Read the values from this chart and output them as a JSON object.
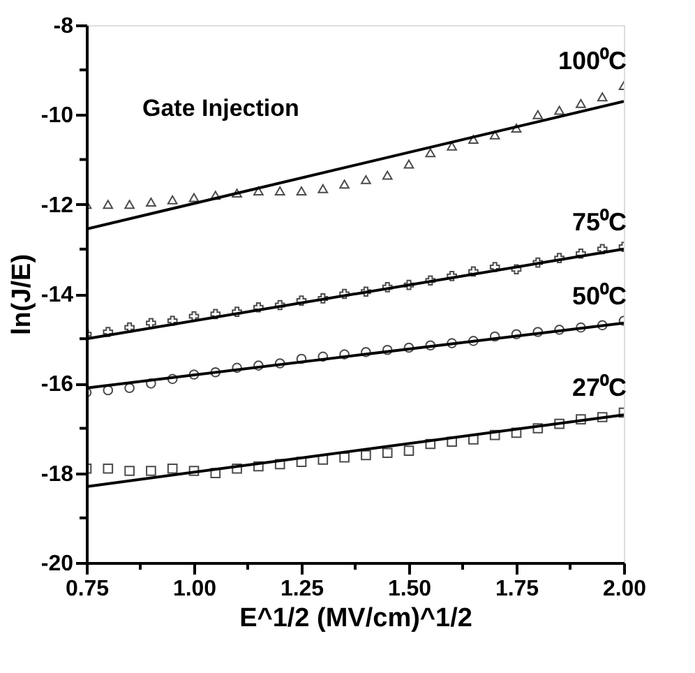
{
  "chart_data": {
    "type": "scatter",
    "xlabel": "E^1/2 (MV/cm)^1/2",
    "ylabel": "ln(J/E)",
    "annotations": [
      "Gate Injection"
    ],
    "xlim": [
      0.75,
      2.0
    ],
    "xticks": [
      {
        "value": 0.75,
        "label": "0.75"
      },
      {
        "value": 0.875,
        "label": null
      },
      {
        "value": 1.0,
        "label": "1.00"
      },
      {
        "value": 1.125,
        "label": null
      },
      {
        "value": 1.25,
        "label": "1.25"
      },
      {
        "value": 1.375,
        "label": null
      },
      {
        "value": 1.5,
        "label": "1.50"
      },
      {
        "value": 1.625,
        "label": null
      },
      {
        "value": 1.75,
        "label": "1.75"
      },
      {
        "value": 1.875,
        "label": null
      },
      {
        "value": 2.0,
        "label": "2.00"
      }
    ],
    "ylim": [
      -20,
      -8
    ],
    "yticks": [
      -20,
      {
        "value": -19,
        "label": null
      },
      -18,
      {
        "value": -17,
        "label": null
      },
      -16,
      {
        "value": -15,
        "label": null
      },
      -14,
      {
        "value": -13,
        "label": null
      },
      -12,
      {
        "value": -11,
        "label": null
      },
      -10,
      {
        "value": -9,
        "label": null
      },
      -8
    ],
    "grid": false,
    "series": [
      {
        "name": "100⁰C",
        "color": "#000000",
        "marker": "triangle",
        "x": [
          0.75,
          0.8,
          0.85,
          0.9,
          0.95,
          1.0,
          1.05,
          1.1,
          1.15,
          1.2,
          1.25,
          1.3,
          1.35,
          1.4,
          1.45,
          1.5,
          1.55,
          1.6,
          1.65,
          1.7,
          1.75,
          1.8,
          1.85,
          1.9,
          1.95,
          2.0
        ],
        "values": [
          -12.0,
          -12.0,
          -12.0,
          -11.95,
          -11.9,
          -11.85,
          -11.8,
          -11.75,
          -11.7,
          -11.7,
          -11.7,
          -11.65,
          -11.55,
          -11.45,
          -11.35,
          -11.1,
          -10.85,
          -10.7,
          -10.55,
          -10.45,
          -10.3,
          -10.0,
          -9.9,
          -9.75,
          -9.6,
          -9.35
        ]
      },
      {
        "name": "75⁰C",
        "color": "#000000",
        "marker": "cross",
        "x": [
          0.75,
          0.8,
          0.85,
          0.9,
          0.95,
          1.0,
          1.05,
          1.1,
          1.15,
          1.2,
          1.25,
          1.3,
          1.35,
          1.4,
          1.45,
          1.5,
          1.55,
          1.6,
          1.65,
          1.7,
          1.75,
          1.8,
          1.85,
          1.9,
          1.95,
          2.0
        ],
        "values": [
          -14.9,
          -14.85,
          -14.75,
          -14.65,
          -14.6,
          -14.5,
          -14.45,
          -14.4,
          -14.3,
          -14.25,
          -14.15,
          -14.1,
          -14.0,
          -13.95,
          -13.85,
          -13.8,
          -13.7,
          -13.6,
          -13.5,
          -13.4,
          -13.45,
          -13.3,
          -13.2,
          -13.1,
          -13.0,
          -12.95
        ]
      },
      {
        "name": "50⁰C",
        "color": "#000000",
        "marker": "circle",
        "x": [
          0.75,
          0.8,
          0.85,
          0.9,
          0.95,
          1.0,
          1.05,
          1.1,
          1.15,
          1.2,
          1.25,
          1.3,
          1.35,
          1.4,
          1.45,
          1.5,
          1.55,
          1.6,
          1.65,
          1.7,
          1.75,
          1.8,
          1.85,
          1.9,
          1.95,
          2.0
        ],
        "values": [
          -16.2,
          -16.15,
          -16.1,
          -16.0,
          -15.9,
          -15.8,
          -15.75,
          -15.65,
          -15.6,
          -15.55,
          -15.45,
          -15.4,
          -15.35,
          -15.3,
          -15.25,
          -15.2,
          -15.15,
          -15.1,
          -15.05,
          -14.95,
          -14.9,
          -14.85,
          -14.8,
          -14.75,
          -14.7,
          -14.6
        ]
      },
      {
        "name": "27⁰C",
        "color": "#000000",
        "marker": "square",
        "x": [
          0.75,
          0.8,
          0.85,
          0.9,
          0.95,
          1.0,
          1.05,
          1.1,
          1.15,
          1.2,
          1.25,
          1.3,
          1.35,
          1.4,
          1.45,
          1.5,
          1.55,
          1.6,
          1.65,
          1.7,
          1.75,
          1.8,
          1.85,
          1.9,
          1.95,
          2.0
        ],
        "values": [
          -17.9,
          -17.9,
          -17.95,
          -17.95,
          -17.9,
          -17.95,
          -18.0,
          -17.9,
          -17.85,
          -17.8,
          -17.75,
          -17.7,
          -17.65,
          -17.6,
          -17.55,
          -17.5,
          -17.35,
          -17.3,
          -17.25,
          -17.15,
          -17.1,
          -17.0,
          -16.9,
          -16.8,
          -16.75,
          -16.65
        ]
      },
      {
        "type": "line",
        "color": "#000000",
        "x": [
          0.75,
          2.0
        ],
        "values": [
          -12.55,
          -9.7
        ]
      },
      {
        "type": "line",
        "color": "#000000",
        "x": [
          0.75,
          2.0
        ],
        "values": [
          -15.0,
          -13.0
        ]
      },
      {
        "type": "line",
        "color": "#000000",
        "x": [
          0.75,
          2.0
        ],
        "values": [
          -16.1,
          -14.65
        ]
      },
      {
        "type": "line",
        "color": "#000000",
        "x": [
          0.75,
          2.0
        ],
        "values": [
          -18.3,
          -16.7
        ]
      }
    ]
  }
}
